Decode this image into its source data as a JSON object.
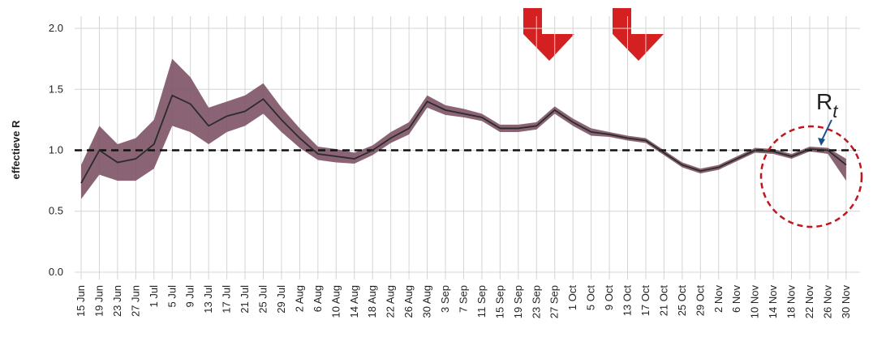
{
  "chart_data": {
    "type": "line",
    "ylabel": "effectieve R",
    "categories": [
      "15 Jun",
      "19 Jun",
      "23 Jun",
      "27 Jun",
      "1 Jul",
      "5 Jul",
      "9 Jul",
      "13 Jul",
      "17 Jul",
      "21 Jul",
      "25 Jul",
      "29 Jul",
      "2 Aug",
      "6 Aug",
      "10 Aug",
      "14 Aug",
      "18 Aug",
      "22 Aug",
      "26 Aug",
      "30 Aug",
      "3 Sep",
      "7 Sep",
      "11 Sep",
      "15 Sep",
      "19 Sep",
      "23 Sep",
      "27 Sep",
      "1 Oct",
      "5 Oct",
      "9 Oct",
      "13 Oct",
      "17 Oct",
      "21 Oct",
      "25 Oct",
      "29 Oct",
      "2 Nov",
      "6 Nov",
      "10 Nov",
      "14 Nov",
      "18 Nov",
      "22 Nov",
      "26 Nov",
      "30 Nov"
    ],
    "series": [
      {
        "values": [
          0.73,
          1.0,
          0.9,
          0.93,
          1.05,
          1.45,
          1.38,
          1.2,
          1.28,
          1.32,
          1.42,
          1.25,
          1.1,
          0.97,
          0.95,
          0.93,
          1.0,
          1.1,
          1.18,
          1.4,
          1.33,
          1.3,
          1.27,
          1.18,
          1.18,
          1.2,
          1.33,
          1.23,
          1.15,
          1.13,
          1.1,
          1.08,
          0.98,
          0.88,
          0.83,
          0.86,
          0.93,
          1.0,
          0.99,
          0.95,
          1.01,
          1.0,
          0.88
        ],
        "color": "#2b2b2b"
      }
    ],
    "band": {
      "upper": [
        0.88,
        1.2,
        1.05,
        1.1,
        1.25,
        1.75,
        1.6,
        1.35,
        1.4,
        1.45,
        1.55,
        1.35,
        1.18,
        1.03,
        1.01,
        0.98,
        1.04,
        1.15,
        1.23,
        1.45,
        1.37,
        1.34,
        1.3,
        1.21,
        1.21,
        1.23,
        1.36,
        1.26,
        1.18,
        1.15,
        1.12,
        1.1,
        1.0,
        0.9,
        0.85,
        0.88,
        0.95,
        1.02,
        1.01,
        0.97,
        1.03,
        1.02,
        0.93
      ],
      "lower": [
        0.6,
        0.8,
        0.75,
        0.75,
        0.85,
        1.2,
        1.15,
        1.05,
        1.15,
        1.2,
        1.3,
        1.15,
        1.02,
        0.92,
        0.9,
        0.89,
        0.96,
        1.06,
        1.13,
        1.35,
        1.29,
        1.27,
        1.24,
        1.15,
        1.15,
        1.17,
        1.3,
        1.2,
        1.12,
        1.11,
        1.08,
        1.06,
        0.96,
        0.86,
        0.81,
        0.84,
        0.91,
        0.98,
        0.97,
        0.93,
        0.99,
        0.97,
        0.75
      ],
      "color": "#7d5366"
    },
    "reference_line": 1,
    "annotation": {
      "text": "R",
      "subscript": "t"
    },
    "ylim": [
      -0.06,
      2.1
    ],
    "yticks": [
      {
        "value": 0,
        "label": "0.0"
      },
      0.5,
      {
        "value": 1,
        "label": "1.0"
      },
      1.5,
      {
        "value": 2,
        "label": "2.0"
      }
    ],
    "grid": true
  }
}
